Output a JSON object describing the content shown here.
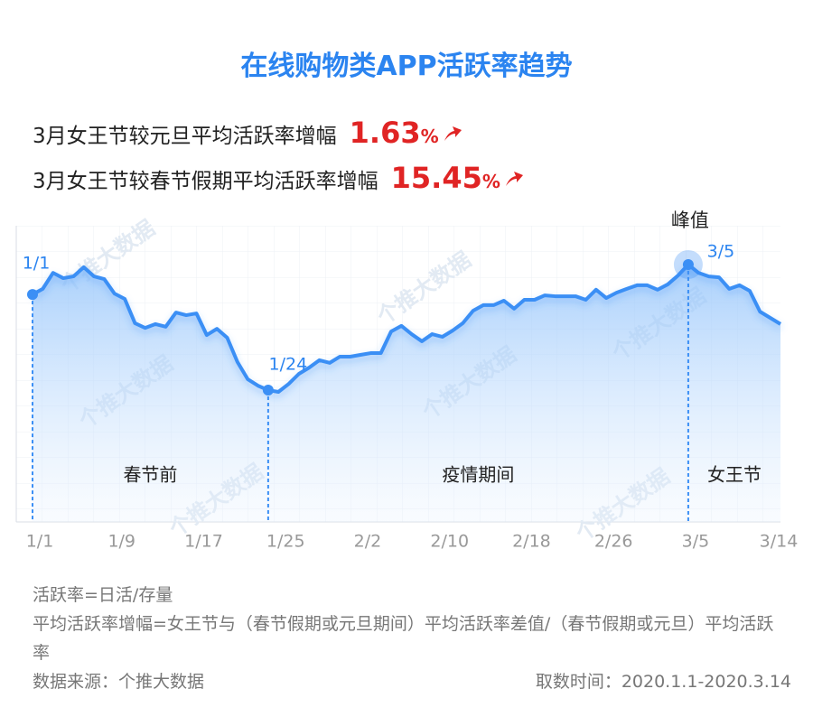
{
  "chart_data": {
    "type": "line",
    "title": "在线购物类APP活跃率趋势",
    "stats": [
      {
        "label": "3月女王节较元旦平均活跃率增幅",
        "value": 1.63,
        "unit": "%"
      },
      {
        "label": "3月女王节较春节假期平均活跃率增幅",
        "value": 15.45,
        "unit": "%"
      }
    ],
    "categories": [
      "1/1",
      null,
      null,
      null,
      null,
      null,
      null,
      null,
      "1/9",
      null,
      null,
      null,
      null,
      null,
      null,
      null,
      "1/17",
      null,
      null,
      null,
      null,
      null,
      null,
      null,
      "1/25",
      null,
      null,
      null,
      null,
      null,
      null,
      null,
      "2/2",
      null,
      null,
      null,
      null,
      null,
      null,
      null,
      "2/10",
      null,
      null,
      null,
      null,
      null,
      null,
      null,
      "2/18",
      null,
      null,
      null,
      null,
      null,
      null,
      null,
      "2/26",
      null,
      null,
      null,
      null,
      null,
      null,
      null,
      "3/5",
      null,
      null,
      null,
      null,
      null,
      null,
      null,
      null,
      "3/14"
    ],
    "series": [
      {
        "color": "#3b8ff5",
        "values": [
          76.8,
          78.7,
          84.1,
          82.3,
          82.9,
          86.0,
          82.9,
          82.0,
          77.1,
          75.3,
          67.1,
          65.5,
          66.8,
          65.9,
          70.7,
          69.8,
          70.4,
          63.1,
          65.2,
          62.2,
          54.0,
          48.2,
          46.0,
          44.5,
          43.9,
          46.6,
          50.0,
          52.1,
          54.6,
          53.7,
          55.8,
          55.8,
          56.4,
          57.0,
          57.0,
          64.3,
          66.2,
          63.4,
          61.0,
          63.4,
          62.5,
          64.6,
          67.1,
          71.3,
          73.2,
          73.2,
          74.7,
          72.0,
          75.0,
          75.0,
          76.5,
          76.2,
          76.2,
          76.2,
          75.0,
          78.4,
          75.6,
          77.4,
          78.7,
          79.9,
          79.9,
          78.4,
          80.2,
          83.2,
          86.9,
          84.1,
          82.9,
          82.6,
          78.7,
          79.9,
          78.0,
          71.0,
          68.9,
          66.8
        ]
      }
    ],
    "ylim": [
      0,
      100
    ],
    "grid": true,
    "annotations": [
      {
        "index": 0,
        "label": "1/1"
      },
      {
        "index": 23,
        "label": "1/24"
      },
      {
        "index": 64,
        "label": "3/5",
        "note": "峰值"
      }
    ],
    "periods": [
      "春节前",
      "疫情期间",
      "女王节"
    ],
    "watermark": "个推大数据",
    "notes": [
      "活跃率=日活/存量",
      "平均活跃率增幅=女王节与（春节假期或元旦期间）平均活跃率差值/（春节假期或元旦）平均活跃率"
    ],
    "source": "数据来源：个推大数据",
    "time_range": "取数时间：2020.1.1-2020.3.14"
  }
}
